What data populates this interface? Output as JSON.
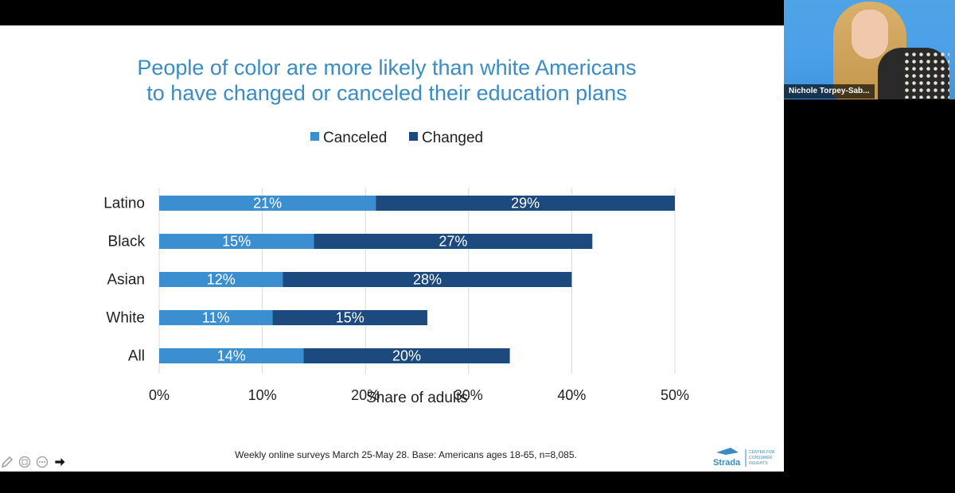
{
  "slide": {
    "title_line1": "People of color are more likely than white Americans",
    "title_line2": "to have changed or canceled their education plans",
    "footnote": "Weekly online surveys March 25-May 28. Base: Americans ages 18-65, n=8,085.",
    "logo": {
      "brand": "Strada",
      "sub_lines": [
        "CENTER FOR",
        "CONSUMER",
        "INSIGHTS"
      ]
    }
  },
  "webcam": {
    "participant_name": "Nichole Torpey-Sab..."
  },
  "tools": [
    {
      "icon": "pen-icon"
    },
    {
      "icon": "annotate-icon"
    },
    {
      "icon": "more-icon"
    },
    {
      "icon": "pointer-icon"
    }
  ],
  "colors": {
    "canceled": "#3b8fd0",
    "changed": "#1c4a7e",
    "title": "#3a8cc2"
  },
  "chart_data": {
    "type": "bar",
    "orientation": "horizontal",
    "stacked": true,
    "categories": [
      "Latino",
      "Black",
      "Asian",
      "White",
      "All"
    ],
    "series": [
      {
        "name": "Canceled",
        "values": [
          21,
          15,
          12,
          11,
          14
        ],
        "labels": [
          "21%",
          "15%",
          "12%",
          "11%",
          "14%"
        ]
      },
      {
        "name": "Changed",
        "values": [
          29,
          27,
          28,
          15,
          20
        ],
        "labels": [
          "29%",
          "27%",
          "28%",
          "15%",
          "20%"
        ]
      }
    ],
    "xlabel": "Share of adults",
    "xlim": [
      0,
      50
    ],
    "xticks": [
      0,
      10,
      20,
      30,
      40,
      50
    ],
    "xtick_labels": [
      "0%",
      "10%",
      "20%",
      "30%",
      "40%",
      "50%"
    ],
    "grid": "vertical",
    "legend": "top"
  }
}
